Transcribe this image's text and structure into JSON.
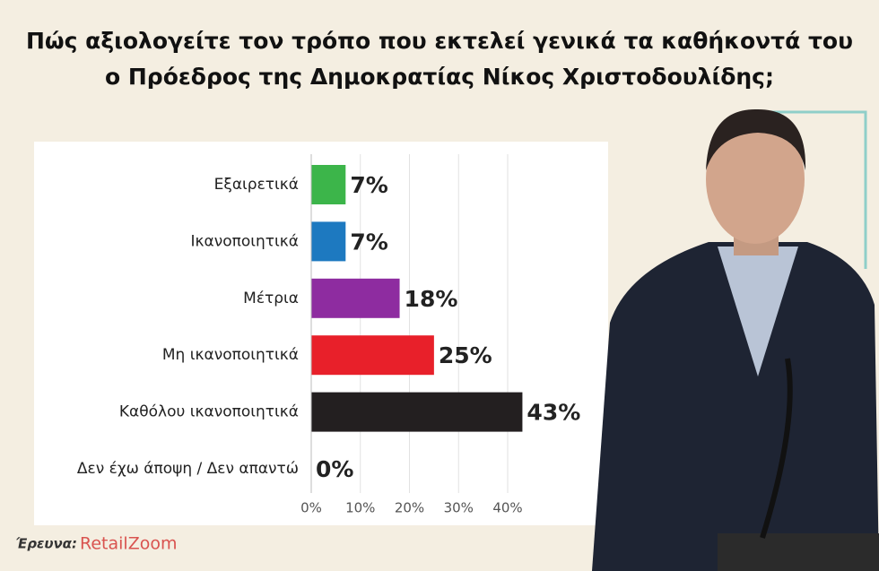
{
  "chart_data": {
    "type": "barh",
    "title": "Πώς αξιολογείτε τον τρόπο που εκτελεί γενικά τα καθήκοντά του",
    "subtitle": "ο Πρόεδρος της Δημοκρατίας Νίκος Χριστοδουλίδης;",
    "categories": [
      "Εξαιρετικά",
      "Ικανοποιητικά",
      "Μέτρια",
      "Μη ικανοποιητικά",
      "Καθόλου ικανοποιητικά",
      "Δεν έχω άποψη / Δεν απαντώ"
    ],
    "values": [
      7,
      7,
      18,
      25,
      43,
      0
    ],
    "value_labels": [
      "7%",
      "7%",
      "18%",
      "25%",
      "43%",
      "0%"
    ],
    "colors": [
      "#3cb54a",
      "#1d79c0",
      "#8e2ca0",
      "#e8202a",
      "#231f20",
      "#231f20"
    ],
    "xlim": [
      0,
      40
    ],
    "xticks": [
      {
        "value": 0,
        "label": "0%"
      },
      {
        "value": 10,
        "label": "10%"
      },
      {
        "value": 20,
        "label": "20%"
      },
      {
        "value": 30,
        "label": "30%"
      },
      {
        "value": 40,
        "label": "40%"
      }
    ],
    "grid": true,
    "source_label": "Έρευνα:",
    "source": "RetailZoom"
  }
}
